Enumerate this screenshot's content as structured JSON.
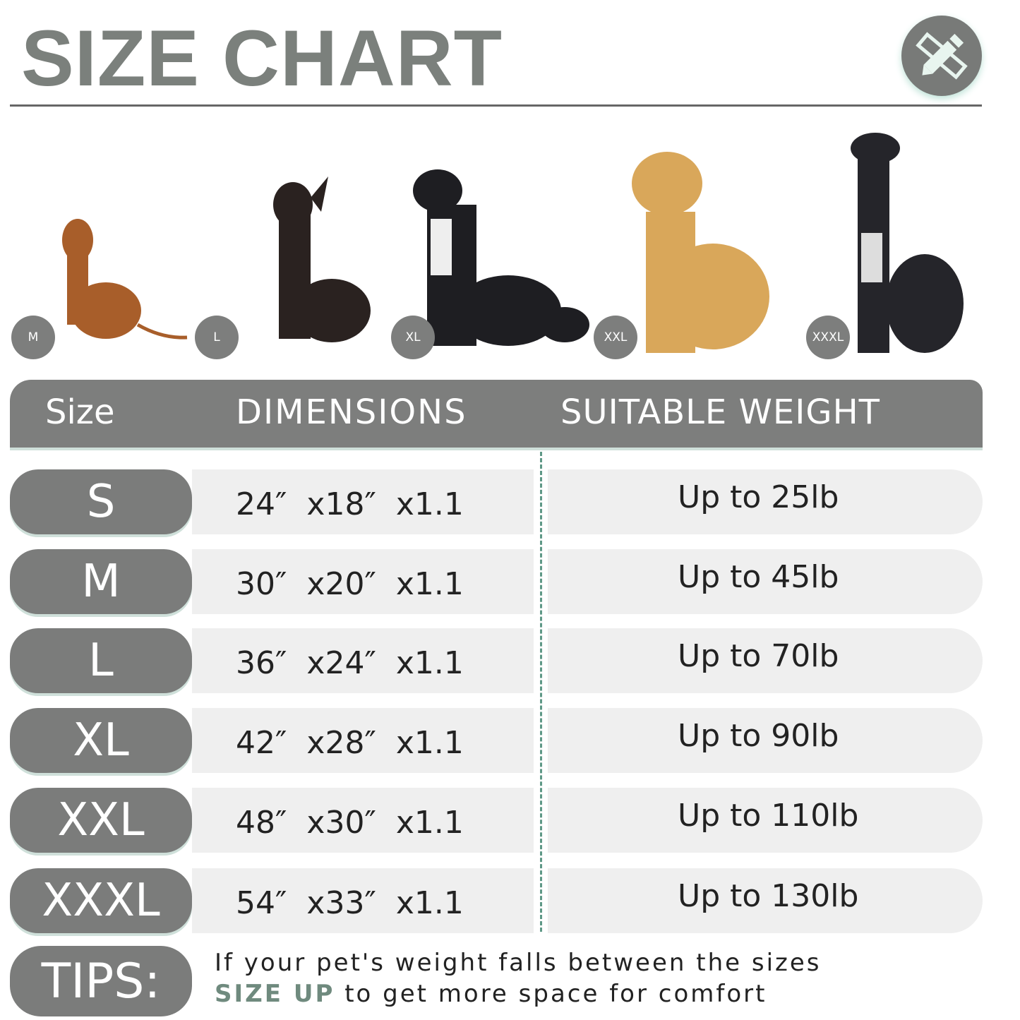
{
  "title": "SIZE CHART",
  "logo_icon": "ruler-pencil-icon",
  "colors": {
    "primary_gray": "#7b7c7b",
    "accent": "#5e9886",
    "row_bg": "#efefef"
  },
  "dogs": [
    {
      "badge": "M",
      "color": "#a85e2a"
    },
    {
      "badge": "L",
      "color": "#2a2220"
    },
    {
      "badge": "XL",
      "color": "#1e1e22"
    },
    {
      "badge": "XXL",
      "color": "#d9a75a"
    },
    {
      "badge": "XXXL",
      "color": "#25252a"
    }
  ],
  "header": {
    "size": "Size",
    "dimensions": "DIMENSIONS",
    "weight": "SUITABLE WEIGHT"
  },
  "rows": [
    {
      "size": "S",
      "dimensions": "24″ x18″ x1.1",
      "weight": "Up to 25lb"
    },
    {
      "size": "M",
      "dimensions": "30″ x20″ x1.1",
      "weight": "Up to 45lb"
    },
    {
      "size": "L",
      "dimensions": "36″ x24″ x1.1",
      "weight": "Up to 70lb"
    },
    {
      "size": "XL",
      "dimensions": "42″ x28″ x1.1",
      "weight": "Up to 90lb"
    },
    {
      "size": "XXL",
      "dimensions": "48″ x30″ x1.1",
      "weight": "Up to 110lb"
    },
    {
      "size": "XXXL",
      "dimensions": "54″ x33″ x1.1",
      "weight": "Up to 130lb"
    }
  ],
  "tips": {
    "label": "TIPS:",
    "line1": "If your pet's weight falls between the sizes",
    "highlight": "SIZE UP",
    "line2_rest": " to get more space for comfort"
  }
}
